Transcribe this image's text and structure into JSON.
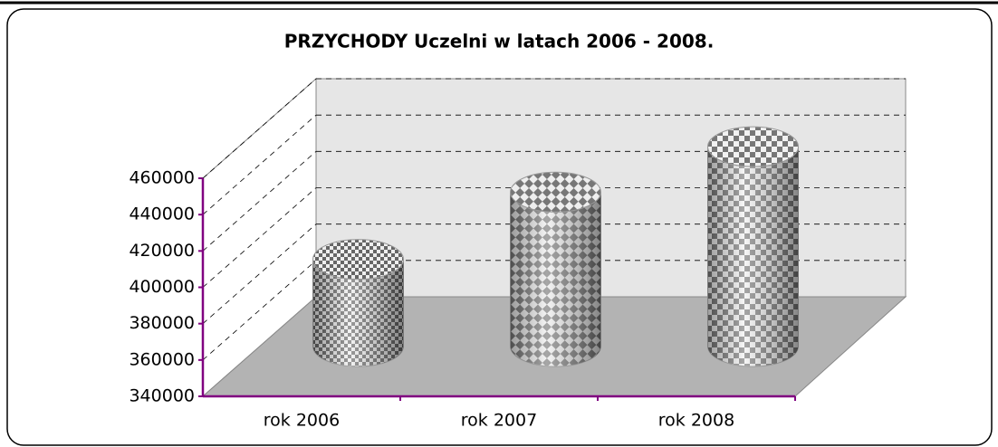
{
  "chart_data": {
    "type": "cylinder",
    "title": "PRZYCHODY Uczelni w latach 2006 - 2008.",
    "categories": [
      "rok 2006",
      "rok 2007",
      "rok 2008"
    ],
    "values": [
      388000,
      425000,
      450000
    ],
    "ylim": [
      340000,
      460000
    ],
    "yticks": [
      340000,
      360000,
      380000,
      400000,
      420000,
      440000,
      460000
    ],
    "grid": true
  }
}
